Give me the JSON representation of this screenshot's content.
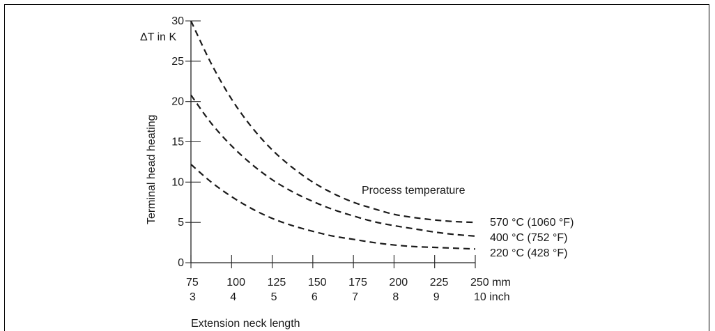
{
  "chart_data": {
    "type": "line",
    "title": "Process temperature",
    "ylabel": "Terminal head heating",
    "yunit": "ΔT in K",
    "xlabel": "Extension neck length",
    "ylim": [
      0,
      30
    ],
    "xlim": [
      75,
      250
    ],
    "yticks": [
      0,
      5,
      10,
      15,
      20,
      25,
      30
    ],
    "xticks_mm": [
      "75",
      "100",
      "125",
      "150",
      "175",
      "200",
      "225",
      "250 mm"
    ],
    "xticks_inch": [
      "3",
      "4",
      "5",
      "6",
      "7",
      "8",
      "9",
      "10 inch"
    ],
    "x": [
      75,
      87.5,
      100,
      112.5,
      125,
      137.5,
      150,
      162.5,
      175,
      187.5,
      200,
      212.5,
      225,
      237.5,
      250
    ],
    "series": [
      {
        "name": "570 °C (1060 °F)",
        "values": [
          30.0,
          24.7,
          20.3,
          16.8,
          14.0,
          11.8,
          10.0,
          8.6,
          7.5,
          6.7,
          6.0,
          5.6,
          5.3,
          5.1,
          5.0
        ]
      },
      {
        "name": "400 °C (752 °F)",
        "values": [
          20.8,
          17.3,
          14.5,
          12.2,
          10.3,
          8.8,
          7.6,
          6.6,
          5.8,
          5.1,
          4.6,
          4.2,
          3.8,
          3.5,
          3.3
        ]
      },
      {
        "name": "220 °C (428 °F)",
        "values": [
          12.2,
          10.0,
          8.2,
          6.7,
          5.5,
          4.6,
          3.9,
          3.3,
          2.9,
          2.5,
          2.2,
          2.0,
          1.9,
          1.8,
          1.7
        ]
      }
    ],
    "grid": false,
    "legend": "inline-right"
  }
}
